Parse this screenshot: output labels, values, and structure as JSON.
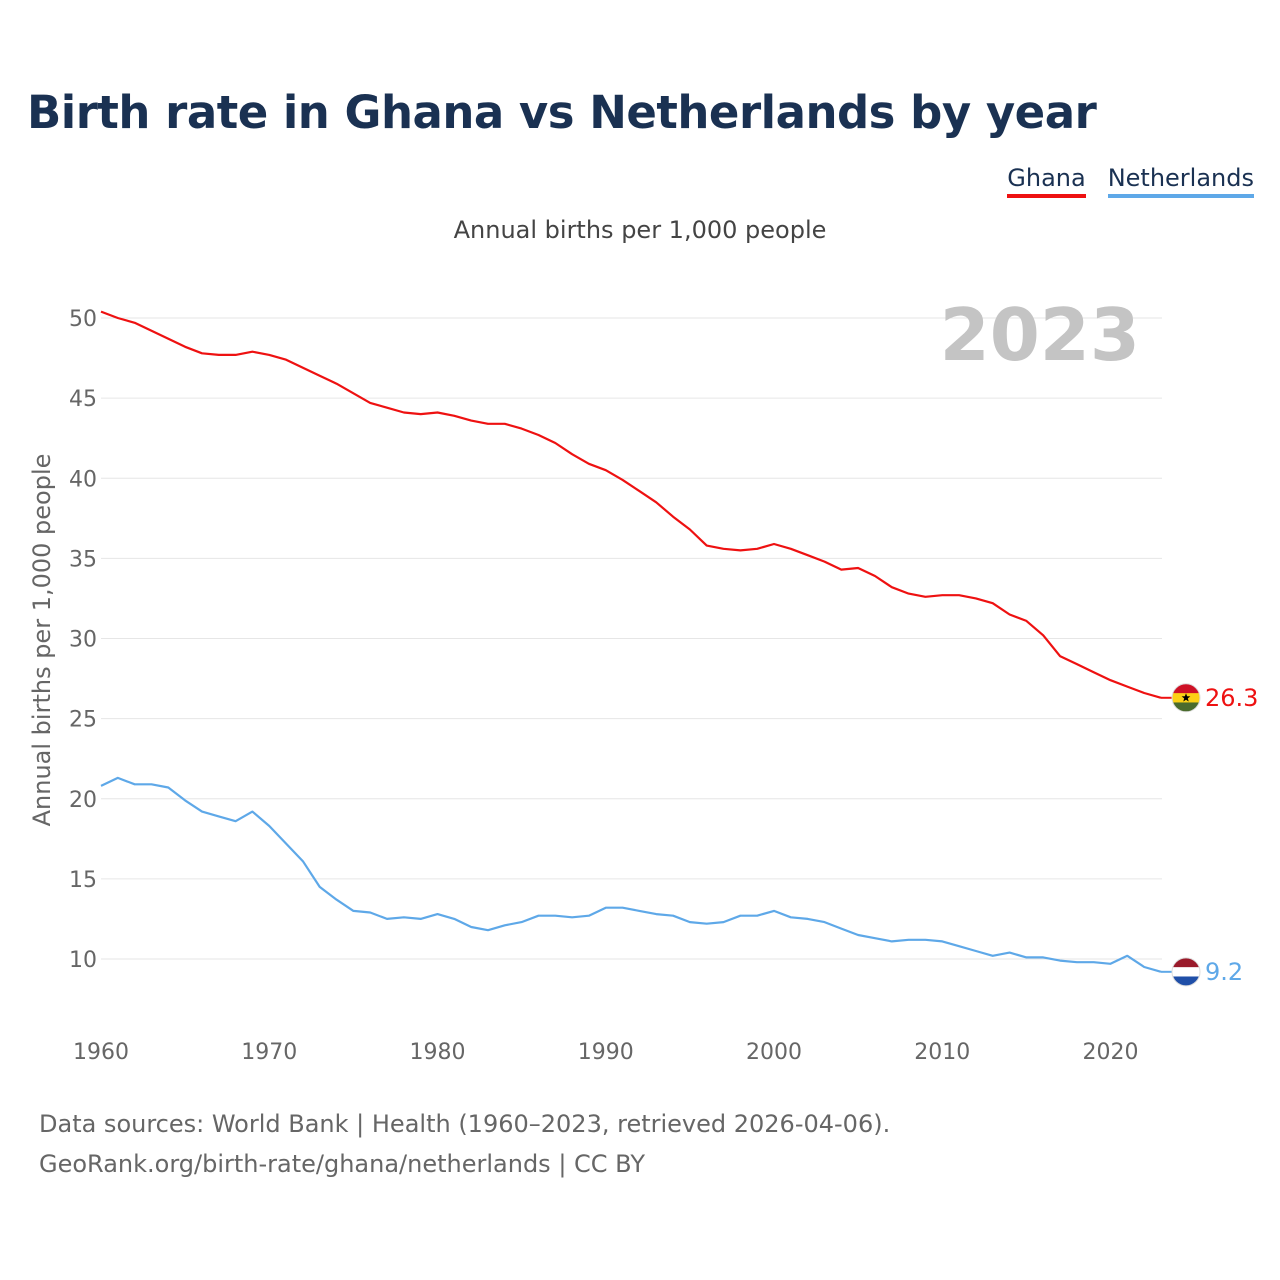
{
  "title": "Birth rate in Ghana vs Netherlands by year",
  "subtitle": "Annual births per 1,000 people",
  "year_label": "2023",
  "source_line1": "Data sources: World Bank | Health (1960–2023, retrieved 2026-04-06).",
  "source_line2": "GeoRank.org/birth-rate/ghana/netherlands | CC BY",
  "chart_data": {
    "type": "line",
    "title": "Birth rate in Ghana vs Netherlands by year",
    "xlabel": "",
    "ylabel": "Annual births per 1,000 people",
    "xlim": [
      1960,
      2023
    ],
    "ylim": [
      7,
      52
    ],
    "yticks": [
      10,
      15,
      20,
      25,
      30,
      35,
      40,
      45,
      50
    ],
    "xticks": [
      1960,
      1970,
      1980,
      1990,
      2000,
      2010,
      2020
    ],
    "grid": true,
    "legend": "top-right",
    "x": [
      1960,
      1961,
      1962,
      1963,
      1964,
      1965,
      1966,
      1967,
      1968,
      1969,
      1970,
      1971,
      1972,
      1973,
      1974,
      1975,
      1976,
      1977,
      1978,
      1979,
      1980,
      1981,
      1982,
      1983,
      1984,
      1985,
      1986,
      1987,
      1988,
      1989,
      1990,
      1991,
      1992,
      1993,
      1994,
      1995,
      1996,
      1997,
      1998,
      1999,
      2000,
      2001,
      2002,
      2003,
      2004,
      2005,
      2006,
      2007,
      2008,
      2009,
      2010,
      2011,
      2012,
      2013,
      2014,
      2015,
      2016,
      2017,
      2018,
      2019,
      2020,
      2021,
      2022,
      2023
    ],
    "series": [
      {
        "name": "Ghana",
        "color": "#ee1111",
        "end_label": "26.3",
        "values": [
          50.4,
          50.0,
          49.7,
          49.2,
          48.7,
          48.2,
          47.8,
          47.7,
          47.7,
          47.9,
          47.7,
          47.4,
          46.9,
          46.4,
          45.9,
          45.3,
          44.7,
          44.4,
          44.1,
          44.0,
          44.1,
          43.9,
          43.6,
          43.4,
          43.4,
          43.1,
          42.7,
          42.2,
          41.5,
          40.9,
          40.5,
          39.9,
          39.2,
          38.5,
          37.6,
          36.8,
          35.8,
          35.6,
          35.5,
          35.6,
          35.9,
          35.6,
          35.2,
          34.8,
          34.3,
          34.4,
          33.9,
          33.2,
          32.8,
          32.6,
          32.7,
          32.7,
          32.5,
          32.2,
          31.5,
          31.1,
          30.2,
          28.9,
          28.4,
          27.9,
          27.4,
          27.0,
          26.6,
          26.3
        ]
      },
      {
        "name": "Netherlands",
        "color": "#5ea8e8",
        "end_label": "9.2",
        "values": [
          20.8,
          21.3,
          20.9,
          20.9,
          20.7,
          19.9,
          19.2,
          18.9,
          18.6,
          19.2,
          18.3,
          17.2,
          16.1,
          14.5,
          13.7,
          13.0,
          12.9,
          12.5,
          12.6,
          12.5,
          12.8,
          12.5,
          12.0,
          11.8,
          12.1,
          12.3,
          12.7,
          12.7,
          12.6,
          12.7,
          13.2,
          13.2,
          13.0,
          12.8,
          12.7,
          12.3,
          12.2,
          12.3,
          12.7,
          12.7,
          13.0,
          12.6,
          12.5,
          12.3,
          11.9,
          11.5,
          11.3,
          11.1,
          11.2,
          11.2,
          11.1,
          10.8,
          10.5,
          10.2,
          10.4,
          10.1,
          10.1,
          9.9,
          9.8,
          9.8,
          9.7,
          10.2,
          9.5,
          9.2
        ]
      }
    ]
  }
}
